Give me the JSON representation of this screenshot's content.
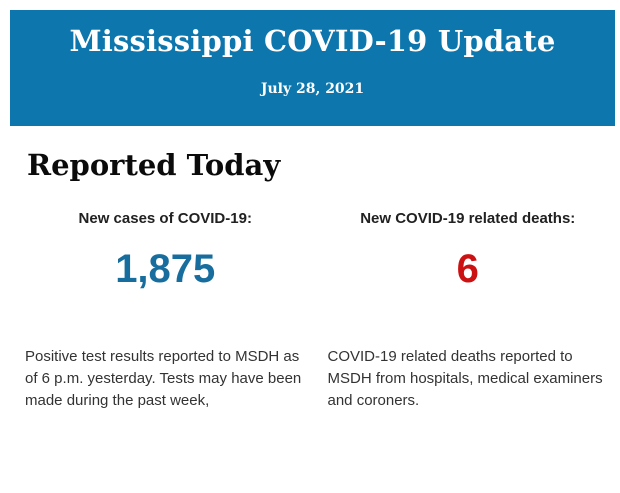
{
  "header": {
    "title": "Mississippi COVID-19 Update",
    "date": "July 28, 2021",
    "background_color": "#0d76ad",
    "text_color": "#ffffff"
  },
  "main": {
    "heading": "Reported Today",
    "stats": [
      {
        "label": "New cases of COVID-19:",
        "value": "1,875",
        "value_color": "#176e9e",
        "description": "Positive test results reported to MSDH as of 6 p.m. yesterday. Tests may have been made during the past week,"
      },
      {
        "label": "New COVID-19 related deaths:",
        "value": "6",
        "value_color": "#cb1111",
        "description": "COVID-19 related deaths reported to MSDH from hospitals, medical examiners and coroners."
      }
    ]
  }
}
